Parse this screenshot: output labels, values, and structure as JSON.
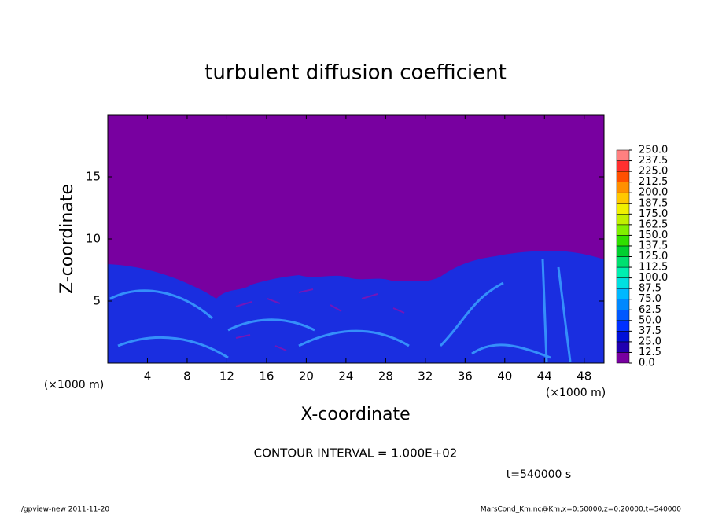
{
  "chart_data": {
    "type": "contour",
    "title": "turbulent diffusion coefficient",
    "xlabel": "X-coordinate",
    "ylabel": "Z-coordinate",
    "x_unit": "(×1000 m)",
    "xlim": [
      0,
      50
    ],
    "xticks": [
      4,
      8,
      12,
      16,
      20,
      24,
      28,
      32,
      36,
      40,
      44,
      48
    ],
    "ylim": [
      0,
      20
    ],
    "yticks": [
      5,
      10,
      15
    ],
    "colorbar": {
      "levels": [
        {
          "value": 0,
          "label": "0.0"
        },
        {
          "value": 12.5,
          "label": "12.5"
        },
        {
          "value": 25,
          "label": "25.0"
        },
        {
          "value": 37.5,
          "label": "37.5"
        },
        {
          "value": 50,
          "label": "50.0"
        },
        {
          "value": 62.5,
          "label": "62.5"
        },
        {
          "value": 75,
          "label": "75.0"
        },
        87.5,
        {
          "value": 100,
          "label": "100.0"
        },
        112.5,
        {
          "value": 125,
          "label": "125.0"
        },
        137.5,
        {
          "value": 150,
          "label": "150.0"
        },
        162.5,
        {
          "value": 175,
          "label": "175.0"
        },
        187.5,
        {
          "value": 200,
          "label": "200.0"
        },
        212.5,
        {
          "value": 225,
          "label": "225.0"
        },
        237.5,
        {
          "value": 250,
          "label": "250.0"
        }
      ],
      "colors": [
        "#7800a0",
        "#2000b0",
        "#0010d8",
        "#0030ff",
        "#0058ff",
        "#0088ff",
        "#00b8ff",
        "#00e0e0",
        "#00f0b0",
        "#00e070",
        "#00d030",
        "#30e000",
        "#80f000",
        "#c0f000",
        "#f0f000",
        "#ffc800",
        "#ff9000",
        "#ff5000",
        "#ff3030",
        "#ff8080"
      ]
    },
    "contour_interval": "CONTOUR INTERVAL = 1.000E+02",
    "time": "t=540000 s",
    "footer_left": "./gpview-new   2011-11-20",
    "footer_right": "MarsCond_Km.nc@Km,x=0:50000,z=0:20000,t=540000"
  }
}
